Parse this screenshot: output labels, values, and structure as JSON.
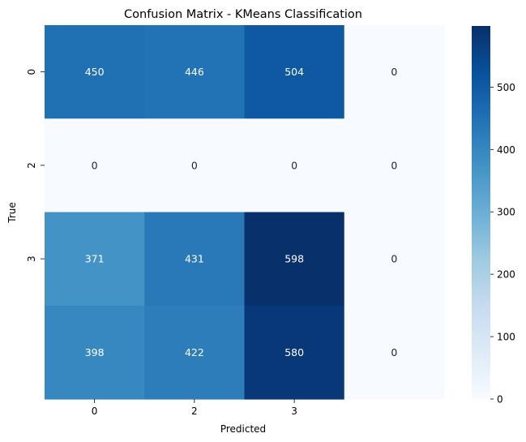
{
  "chart_data": {
    "type": "heatmap",
    "title": "Confusion Matrix - KMeans Classification",
    "xlabel": "Predicted",
    "ylabel": "True",
    "x_tick_labels": [
      "0",
      "2",
      "3",
      ""
    ],
    "y_tick_labels": [
      "0",
      "2",
      "3",
      ""
    ],
    "values": [
      [
        450,
        446,
        504,
        0
      ],
      [
        0,
        0,
        0,
        0
      ],
      [
        371,
        431,
        598,
        0
      ],
      [
        398,
        422,
        580,
        0
      ]
    ],
    "colormap": "Blues",
    "vmin": 0,
    "vmax": 598,
    "colorbar_ticks": [
      0,
      100,
      200,
      300,
      400,
      500
    ],
    "annotation_colors": {
      "light_cell": "#262626",
      "dark_cell": "#ffffff"
    }
  }
}
